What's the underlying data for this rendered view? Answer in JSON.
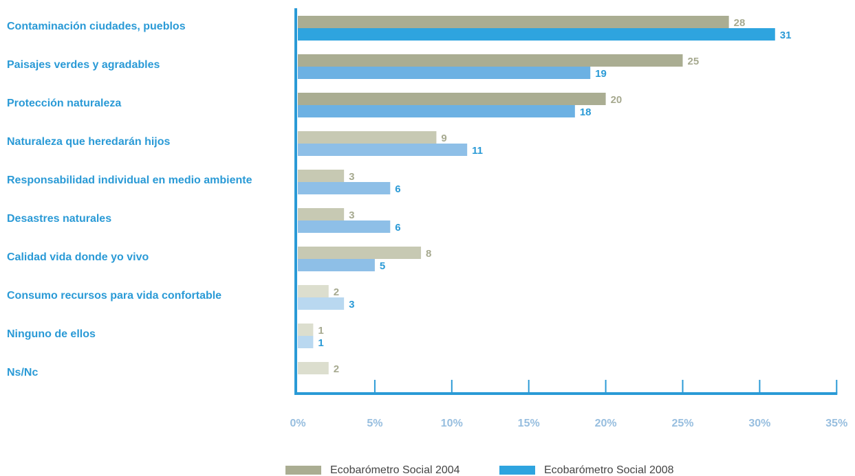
{
  "chart_data": {
    "type": "bar",
    "orientation": "horizontal",
    "categories": [
      "Contaminación ciudades, pueblos",
      "Paisajes verdes y agradables",
      "Protección naturaleza",
      "Naturaleza que heredarán hijos",
      "Responsabilidad individual en medio ambiente",
      "Desastres naturales",
      "Calidad vida donde yo vivo",
      "Consumo recursos para vida confortable",
      "Ninguno de ellos",
      "Ns/Nc"
    ],
    "series": [
      {
        "name": "Ecobarómetro Social 2004",
        "values": [
          28,
          25,
          20,
          9,
          3,
          3,
          8,
          2,
          1,
          2
        ],
        "color": "#aaad92"
      },
      {
        "name": "Ecobarómetro Social 2008",
        "values": [
          31,
          19,
          18,
          11,
          6,
          6,
          5,
          3,
          1,
          null
        ],
        "color": "#2ea4df"
      }
    ],
    "xlim": [
      0,
      35
    ],
    "xticks": [
      0,
      5,
      10,
      15,
      20,
      25,
      30,
      35
    ],
    "xtick_labels": [
      "0%",
      "5%",
      "10%",
      "15%",
      "20%",
      "25%",
      "30%",
      "35%"
    ],
    "data_label_format": "integer",
    "legend_position": "bottom-center",
    "axis_color": "#2a9ad6"
  }
}
